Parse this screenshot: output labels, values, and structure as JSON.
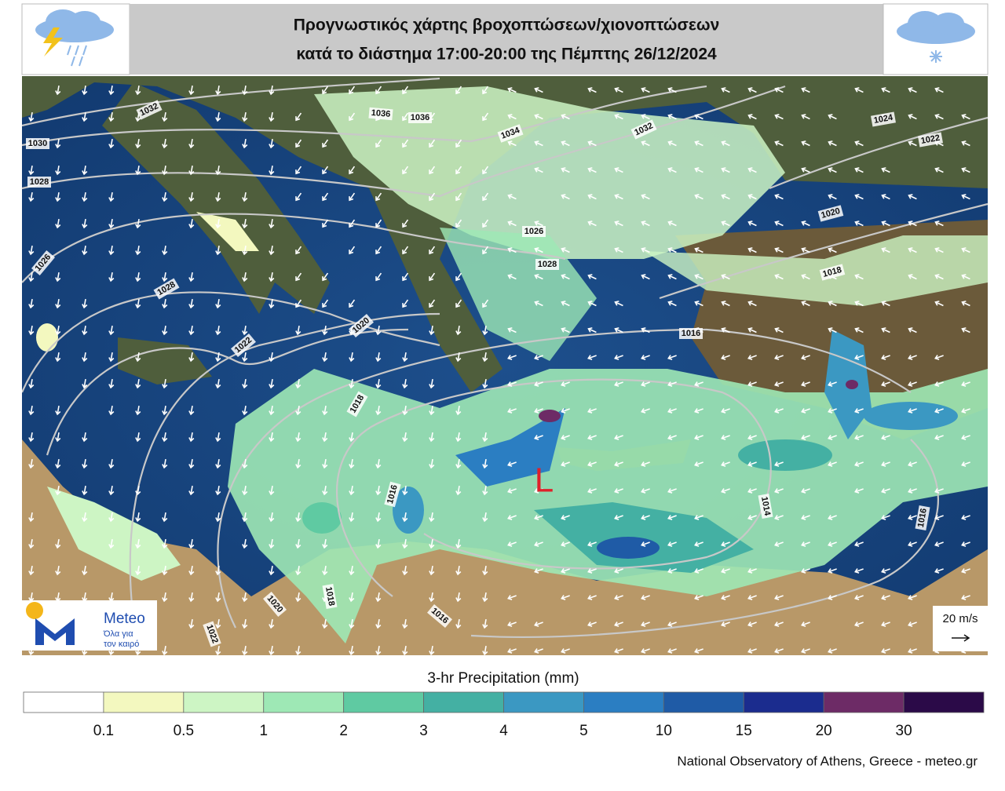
{
  "header": {
    "title_lines": [
      "Προγνωστικός χάρτης βροχοπτώσεων/χιονοπτώσεων",
      "κατά το διάστημα  17:00-20:00 της Πέμπτης 26/12/2024"
    ]
  },
  "map": {
    "isobar_labels": [
      1032,
      1036,
      1036,
      1034,
      1032,
      1024,
      1022,
      1030,
      1028,
      1026,
      1028,
      1020,
      1018,
      1016,
      1026,
      1028,
      1022,
      1020,
      1018,
      1016,
      1014,
      1016,
      1016,
      1018,
      1020,
      1022
    ],
    "low_marker": "L",
    "wind_scale": "20 m/s"
  },
  "logo": {
    "name": "Meteo",
    "tagline": [
      "Όλα για",
      "τον καιρό"
    ]
  },
  "colorbar": {
    "title": "3-hr Precipitation (mm)",
    "ticks": [
      0.1,
      0.5,
      1,
      2,
      3,
      4,
      5,
      10,
      15,
      20,
      30
    ],
    "colors": [
      "#ffffff",
      "#f3f8bf",
      "#cdf5c4",
      "#9ee8b5",
      "#5fcaa2",
      "#44b0a3",
      "#3b98c2",
      "#2b7ec2",
      "#1f5ba6",
      "#1b2c8e",
      "#6d2b66",
      "#2b0a48"
    ]
  },
  "footer": "National Observatory of Athens, Greece - meteo.gr"
}
